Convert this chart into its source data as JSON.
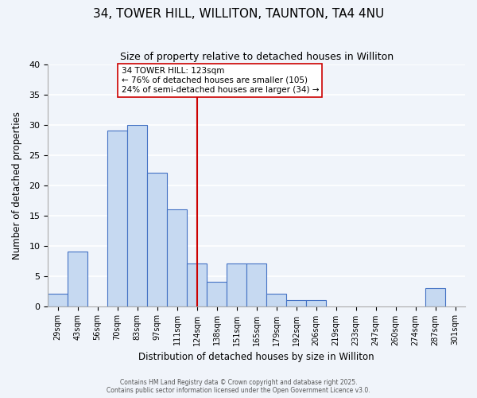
{
  "title": "34, TOWER HILL, WILLITON, TAUNTON, TA4 4NU",
  "subtitle": "Size of property relative to detached houses in Williton",
  "xlabel": "Distribution of detached houses by size in Williton",
  "ylabel": "Number of detached properties",
  "bin_labels": [
    "29sqm",
    "43sqm",
    "56sqm",
    "70sqm",
    "83sqm",
    "97sqm",
    "111sqm",
    "124sqm",
    "138sqm",
    "151sqm",
    "165sqm",
    "179sqm",
    "192sqm",
    "206sqm",
    "219sqm",
    "233sqm",
    "247sqm",
    "260sqm",
    "274sqm",
    "287sqm",
    "301sqm"
  ],
  "bar_heights": [
    2,
    9,
    0,
    29,
    30,
    22,
    16,
    7,
    4,
    7,
    7,
    2,
    1,
    1,
    0,
    0,
    0,
    0,
    0,
    3,
    0
  ],
  "bar_color": "#c6d9f1",
  "bar_edge_color": "#4472c4",
  "bar_width": 1.0,
  "vline_x": 7,
  "vline_color": "#cc0000",
  "annotation_title": "34 TOWER HILL: 123sqm",
  "annotation_line2": "← 76% of detached houses are smaller (105)",
  "annotation_line3": "24% of semi-detached houses are larger (34) →",
  "annotation_box_edge": "#cc0000",
  "ylim": [
    0,
    40
  ],
  "yticks": [
    0,
    5,
    10,
    15,
    20,
    25,
    30,
    35,
    40
  ],
  "footer1": "Contains HM Land Registry data © Crown copyright and database right 2025.",
  "footer2": "Contains public sector information licensed under the Open Government Licence v3.0.",
  "bg_color": "#f0f4fa",
  "grid_color": "#ffffff"
}
